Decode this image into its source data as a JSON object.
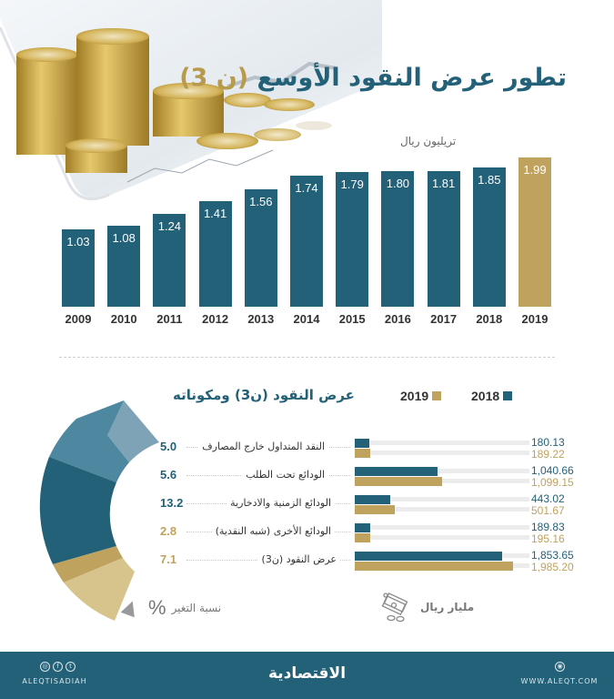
{
  "header": {
    "title_main": "تطور عرض النقود الأوسع",
    "title_accent": "(ن 3)",
    "unit": "تريليون ريال"
  },
  "colors": {
    "primary": "#236178",
    "accent": "#bfa25d",
    "accent_light": "#d6c48c",
    "footer_bg": "#236178"
  },
  "chart_data": [
    {
      "type": "bar",
      "title": "تطور عرض النقود الأوسع (ن 3)",
      "ylabel": "تريليون ريال",
      "xlabel": "",
      "categories": [
        "2009",
        "2010",
        "2011",
        "2012",
        "2013",
        "2014",
        "2015",
        "2016",
        "2017",
        "2018",
        "2019"
      ],
      "values": [
        1.03,
        1.08,
        1.24,
        1.41,
        1.56,
        1.74,
        1.79,
        1.8,
        1.81,
        1.85,
        1.99
      ],
      "value_labels": [
        "1.03",
        "1.08",
        "1.24",
        "1.41",
        "1.56",
        "1.74",
        "1.79",
        "1.80",
        "1.81",
        "1.85",
        "1.99"
      ],
      "highlight": "2019",
      "grid": false
    },
    {
      "type": "bar",
      "orientation": "horizontal",
      "title": "عرض النقود (ن3) ومكوناته",
      "unit": "مليار ريال",
      "legend": [
        "2018",
        "2019"
      ],
      "categories": [
        "النقد المتداول خارج المصارف",
        "الودائع  تحت الطلب",
        "الودائع الزمنية والادخارية",
        "الودائع الأخرى (شبه النقدية)",
        "عرض النقود (ن3)"
      ],
      "series": [
        {
          "name": "2018",
          "values": [
            180.13,
            1040.66,
            443.02,
            189.83,
            1853.65
          ]
        },
        {
          "name": "2019",
          "values": [
            189.22,
            1099.15,
            501.67,
            195.16,
            1985.2
          ]
        }
      ],
      "change_pct": [
        5.0,
        5.6,
        13.2,
        2.8,
        7.1
      ]
    },
    {
      "type": "pie",
      "subtype": "half-donut",
      "title": "نسبة التغير %",
      "values": [
        5.0,
        5.6,
        13.2,
        2.8,
        7.1
      ]
    }
  ],
  "section2": {
    "title": "عرض النقود (ن3) ومكوناته",
    "legend": [
      {
        "label": "2018",
        "color": "#236178"
      },
      {
        "label": "2019",
        "color": "#bfa25d"
      }
    ],
    "rows": [
      {
        "label": "النقد المتداول خارج المصارف",
        "pct": "5.0",
        "pct_color": "#236178",
        "v2018": "180.13",
        "v2019": "189.22",
        "w2018": 16,
        "w2019": 17
      },
      {
        "label": "الودائع  تحت الطلب",
        "pct": "5.6",
        "pct_color": "#236178",
        "v2018": "1,040.66",
        "v2019": "1,099.15",
        "w2018": 91,
        "w2019": 96
      },
      {
        "label": "الودائع الزمنية والادخارية",
        "pct": "13.2",
        "pct_color": "#236178",
        "v2018": "443.02",
        "v2019": "501.67",
        "w2018": 39,
        "w2019": 44
      },
      {
        "label": "الودائع الأخرى (شبه النقدية)",
        "pct": "2.8",
        "pct_color": "#bfa25d",
        "v2018": "189.83",
        "v2019": "195.16",
        "w2018": 17,
        "w2019": 17
      },
      {
        "label": "عرض النقود (ن3)",
        "pct": "7.1",
        "pct_color": "#bfa25d",
        "v2018": "1,853.65",
        "v2019": "1,985.20",
        "w2018": 162,
        "w2019": 174
      }
    ],
    "pct_caption": "نسبة التغير",
    "pct_symbol": "%",
    "unit": "مليار ريال",
    "unit_icon": "money-icon"
  },
  "footer": {
    "brand": "الاقتصادية",
    "handle": "ALEQTISADIAH",
    "site": "WWW.ALEQT.COM",
    "social_icons": [
      "instagram-icon",
      "facebook-icon",
      "twitter-icon"
    ],
    "site_icon": "globe-icon"
  }
}
